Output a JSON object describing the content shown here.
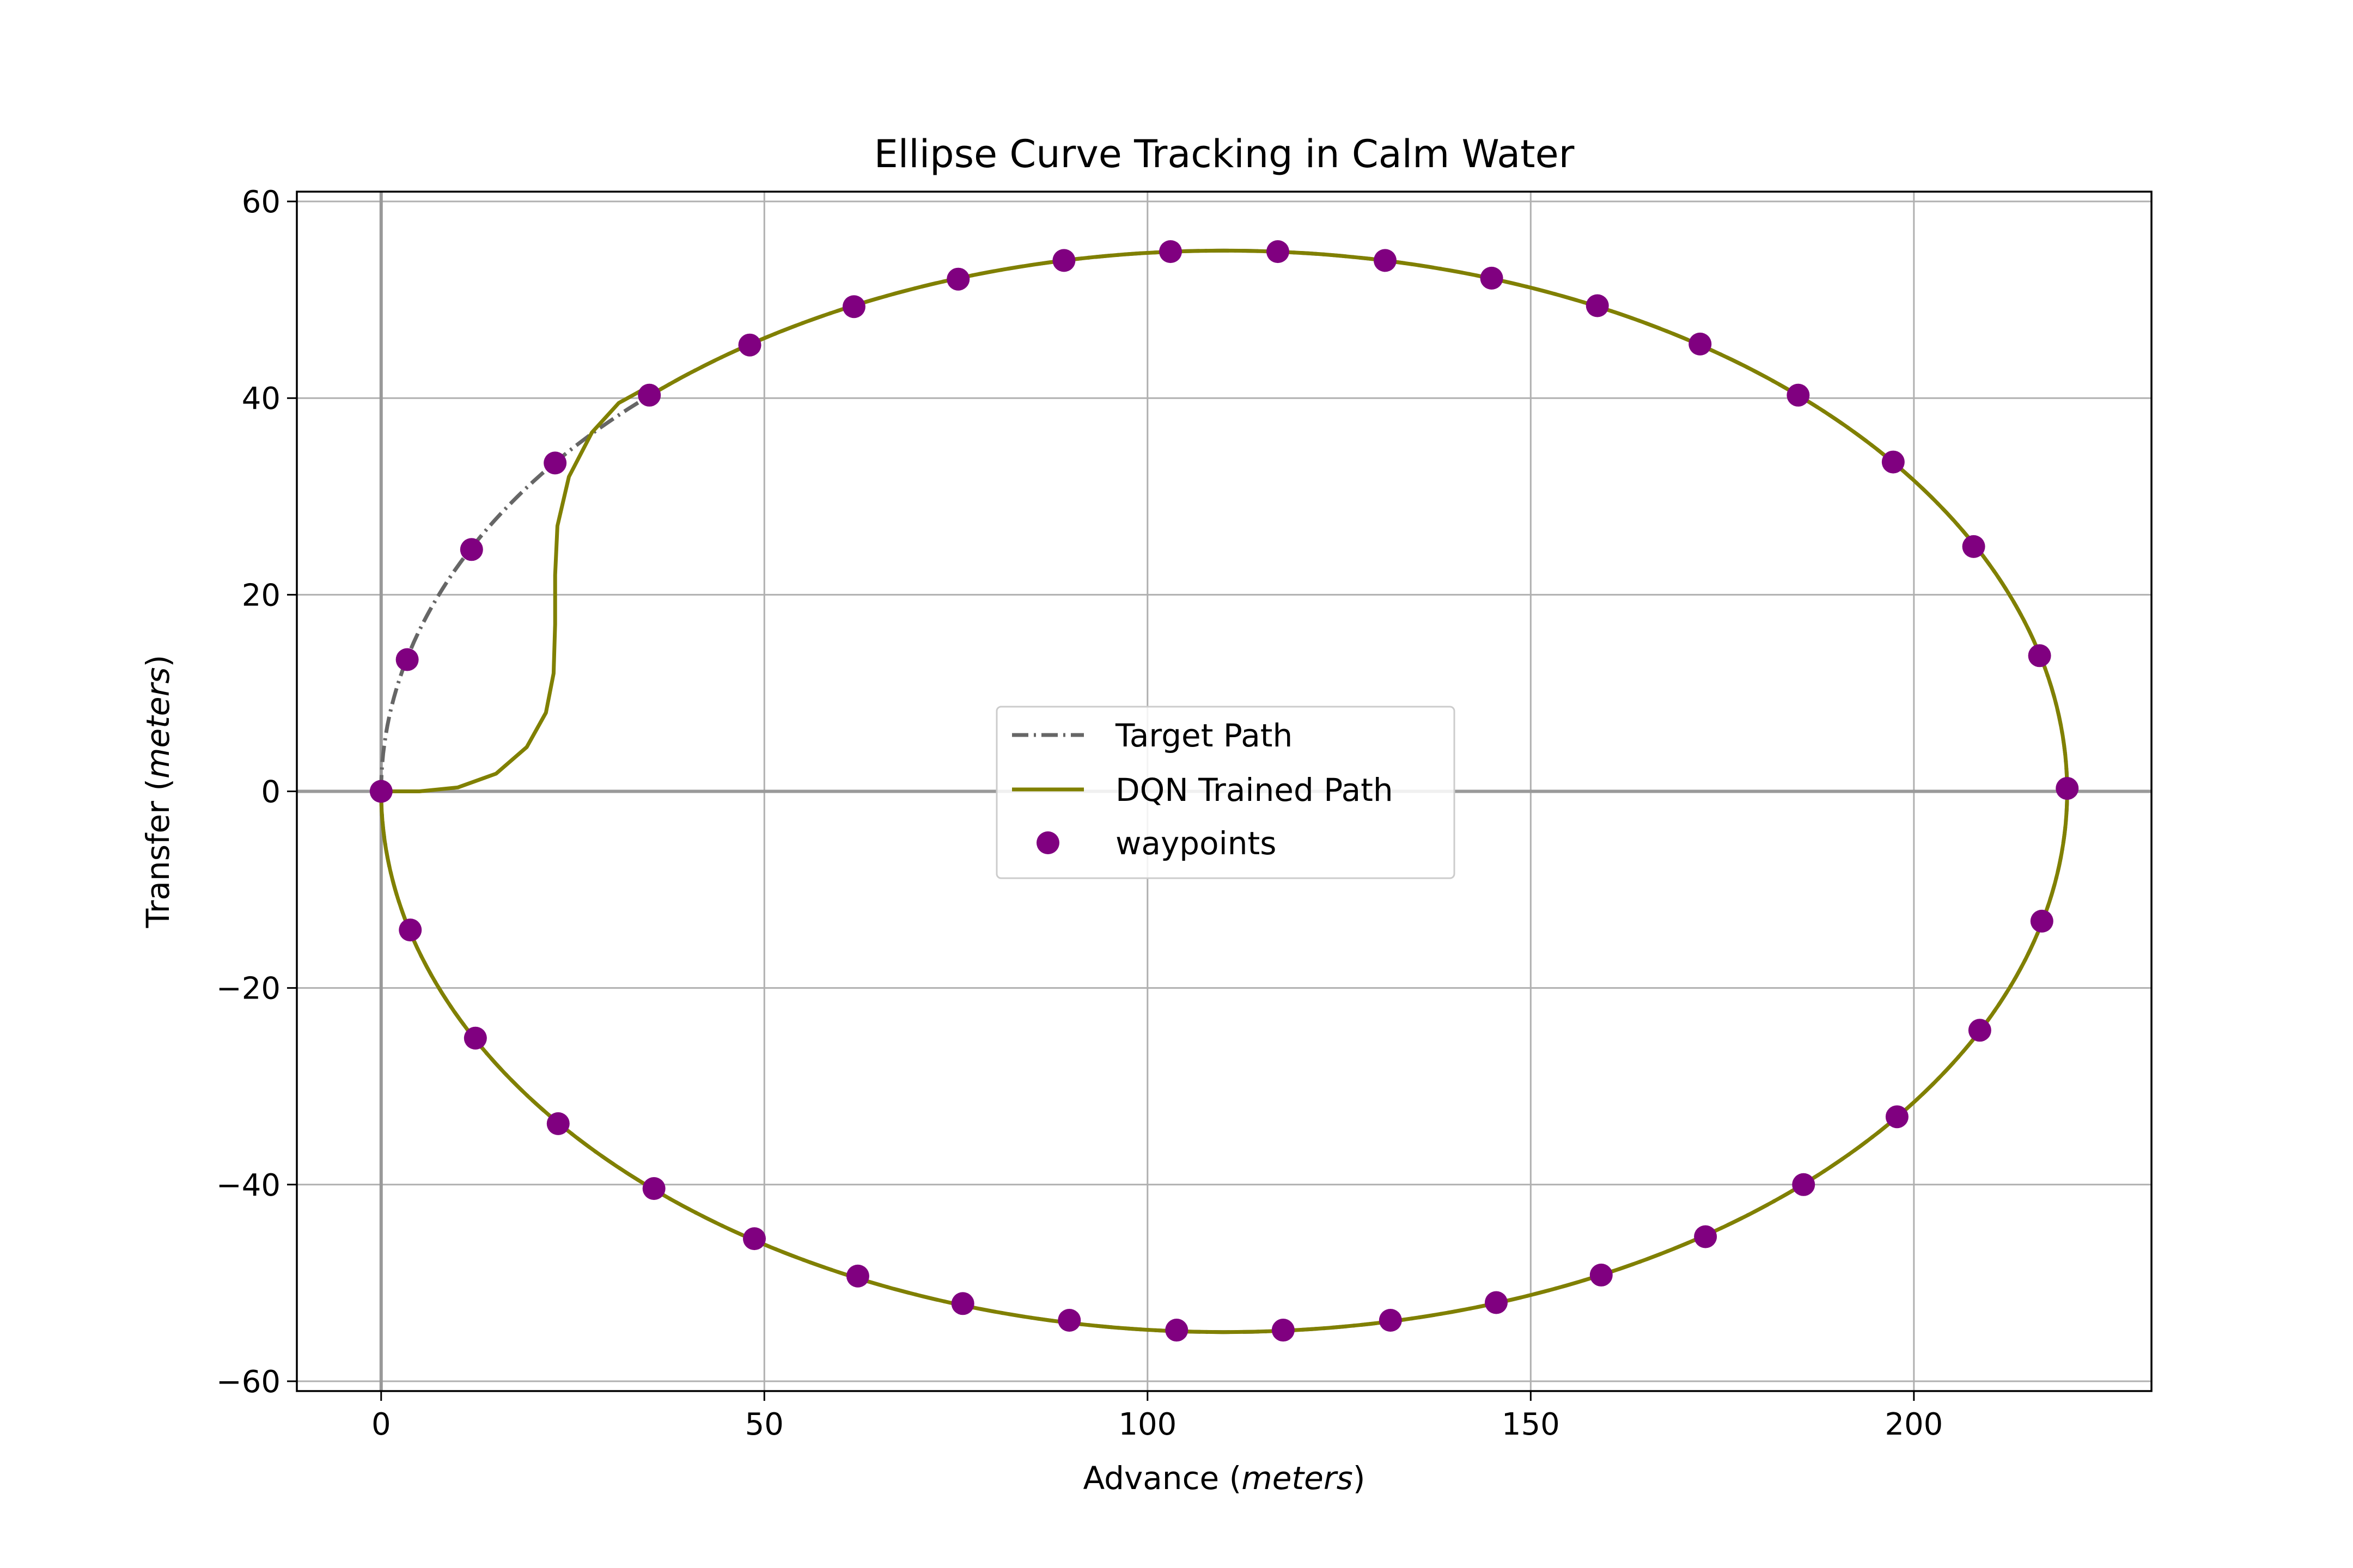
{
  "chart_data": {
    "type": "line",
    "title": "Ellipse Curve Tracking in Calm Water",
    "xlabel": {
      "text": "Advance ",
      "unit": "meters"
    },
    "ylabel": {
      "text": "Transfer ",
      "unit": "meters"
    },
    "xlim": [
      -11,
      231
    ],
    "ylim": [
      -61,
      61
    ],
    "xticks": [
      0,
      50,
      100,
      150,
      200
    ],
    "yticks": [
      -60,
      -40,
      -20,
      0,
      20,
      40,
      60
    ],
    "xtick_labels": [
      "0",
      "50",
      "100",
      "150",
      "200"
    ],
    "ytick_labels": [
      "−60",
      "−40",
      "−20",
      "0",
      "20",
      "40",
      "60"
    ],
    "grid": true,
    "legend_position": "center",
    "ellipse": {
      "center": [
        110,
        0
      ],
      "semi_axis_x": 110,
      "semi_axis_y": 55
    },
    "series": [
      {
        "name": "Target Path",
        "style": "dashdot",
        "color": "#666666"
      },
      {
        "name": "DQN Trained Path",
        "style": "solid",
        "color": "#808000",
        "initial_segment": [
          [
            0,
            0
          ],
          [
            5,
            0
          ],
          [
            10,
            0.4
          ],
          [
            15,
            1.8
          ],
          [
            19,
            4.5
          ],
          [
            21.5,
            8
          ],
          [
            22.5,
            12
          ],
          [
            22.7,
            17
          ],
          [
            22.7,
            22
          ],
          [
            23,
            27
          ],
          [
            24.5,
            32
          ],
          [
            27.5,
            36.5
          ],
          [
            31,
            39.5
          ],
          [
            34.5,
            41
          ]
        ]
      },
      {
        "name": "waypoints",
        "type": "scatter",
        "color": "#800080",
        "points": [
          [
            0,
            0
          ],
          [
            3.4,
            13.4
          ],
          [
            11.8,
            24.6
          ],
          [
            22.7,
            33.4
          ],
          [
            35,
            40.3
          ],
          [
            48.1,
            45.4
          ],
          [
            61.7,
            49.3
          ],
          [
            75.3,
            52.1
          ],
          [
            89.1,
            54.0
          ],
          [
            103,
            54.9
          ],
          [
            117,
            54.9
          ],
          [
            131,
            54.0
          ],
          [
            144.9,
            52.2
          ],
          [
            158.7,
            49.4
          ],
          [
            172.1,
            45.5
          ],
          [
            184.9,
            40.3
          ],
          [
            197.3,
            33.5
          ],
          [
            207.8,
            24.9
          ],
          [
            216.4,
            13.8
          ],
          [
            220,
            0.3
          ],
          [
            216.7,
            -13.2
          ],
          [
            208.6,
            -24.3
          ],
          [
            197.8,
            -33.1
          ],
          [
            185.6,
            -40.0
          ],
          [
            172.8,
            -45.3
          ],
          [
            159.2,
            -49.2
          ],
          [
            145.5,
            -52.0
          ],
          [
            131.7,
            -53.8
          ],
          [
            117.7,
            -54.8
          ],
          [
            103.8,
            -54.8
          ],
          [
            89.8,
            -53.8
          ],
          [
            75.9,
            -52.1
          ],
          [
            62.2,
            -49.3
          ],
          [
            48.7,
            -45.5
          ],
          [
            35.6,
            -40.4
          ],
          [
            23.1,
            -33.8
          ],
          [
            12.3,
            -25.1
          ],
          [
            3.8,
            -14.1
          ]
        ]
      }
    ]
  }
}
